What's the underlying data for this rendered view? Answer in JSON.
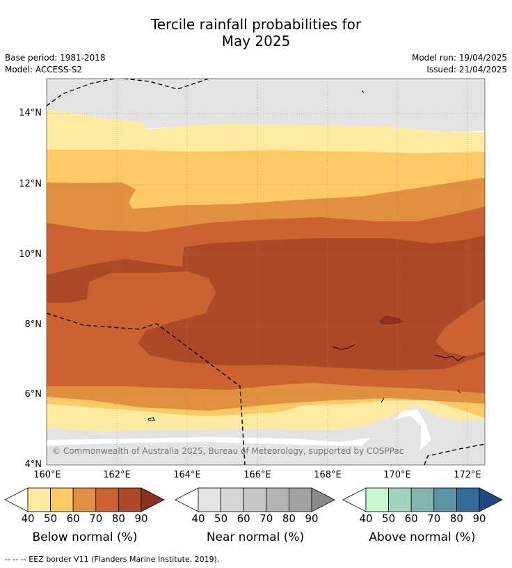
{
  "title_line1": "Tercile rainfall probabilities for",
  "title_line2": "May 2025",
  "meta": {
    "base_period": "Base period: 1981-2018",
    "model": "Model: ACCESS-S2",
    "model_run": "Model run: 19/04/2025",
    "issued": "Issued: 21/04/2025"
  },
  "axes": {
    "y_ticks": [
      "14°N",
      "12°N",
      "10°N",
      "8°N",
      "6°N",
      "4°N"
    ],
    "x_ticks": [
      "160°E",
      "162°E",
      "164°E",
      "166°E",
      "168°E",
      "170°E",
      "172°E"
    ]
  },
  "copyright": "© Commonwealth of Australia 2025, Bureau of Meteorology, supported by COSPPac",
  "legends": [
    {
      "title": "Below normal (%)",
      "ticks": [
        "40",
        "50",
        "60",
        "70",
        "80",
        "90"
      ],
      "colors": [
        "#ffffff",
        "#feeaa0",
        "#fdc965",
        "#e0903f",
        "#cb622f",
        "#ad4926",
        "#8c3020"
      ]
    },
    {
      "title": "Near normal (%)",
      "ticks": [
        "40",
        "50",
        "60",
        "70",
        "80",
        "90"
      ],
      "colors": [
        "#ffffff",
        "#e3e3e3",
        "#d5d5d5",
        "#c5c5c5",
        "#b3b3b3",
        "#a1a1a1",
        "#8a8a8a"
      ]
    },
    {
      "title": "Above normal (%)",
      "ticks": [
        "40",
        "50",
        "60",
        "70",
        "80",
        "90"
      ],
      "colors": [
        "#ffffff",
        "#c9f7cf",
        "#a1d4bc",
        "#82b6ad",
        "#5c94a1",
        "#356a99",
        "#1d4a86"
      ]
    }
  ],
  "footnote": "--  --  -- EEZ border V11 (Flanders Marine Institute, 2019)."
}
